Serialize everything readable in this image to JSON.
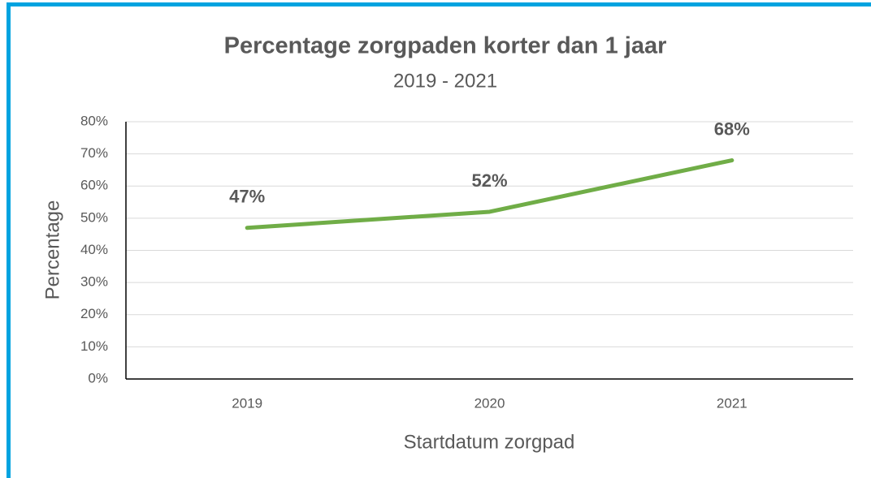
{
  "chart_data": {
    "type": "line",
    "title": "Percentage zorgpaden korter dan 1 jaar",
    "subtitle": "2019 - 2021",
    "x_label": "Startdatum zorgpad",
    "y_label": "Percentage",
    "categories": [
      "2019",
      "2020",
      "2021"
    ],
    "series": [
      {
        "name": "Percentage",
        "color": "#70ad47",
        "values": [
          47,
          52,
          68
        ],
        "value_labels": [
          "47%",
          "52%",
          "68%"
        ]
      }
    ],
    "ylim": [
      0,
      80
    ],
    "yticks": [
      {
        "value": 0,
        "label": "0%"
      },
      {
        "value": 10,
        "label": "10%"
      },
      {
        "value": 20,
        "label": "20%"
      },
      {
        "value": 30,
        "label": "30%"
      },
      {
        "value": 40,
        "label": "40%"
      },
      {
        "value": 50,
        "label": "50%"
      },
      {
        "value": 60,
        "label": "60%"
      },
      {
        "value": 70,
        "label": "70%"
      },
      {
        "value": 80,
        "label": "80%"
      }
    ],
    "grid": true
  }
}
